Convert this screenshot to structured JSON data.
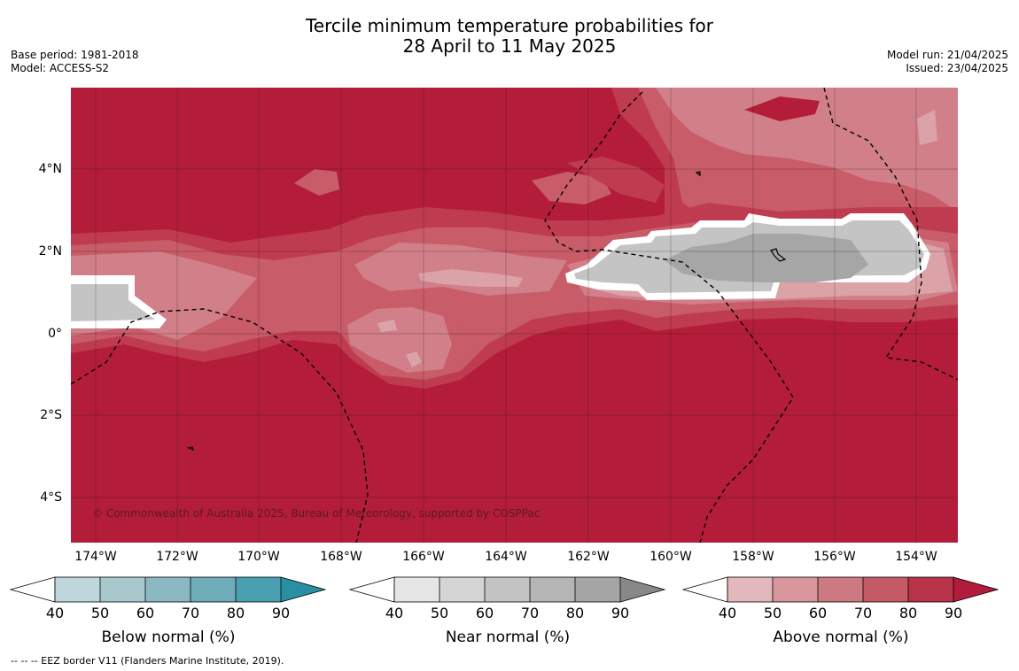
{
  "title": {
    "line1": "Tercile minimum temperature probabilities for",
    "line2": "28 April to 11 May 2025"
  },
  "meta": {
    "base_period": "Base period: 1981-2018",
    "model": "Model: ACCESS-S2",
    "model_run": "Model run: 21/04/2025",
    "issued": "Issued: 23/04/2025"
  },
  "map": {
    "copyright": "© Commonwealth of Australia 2025, Bureau of Meteorology, supported by COSPPac",
    "lat_labels": [
      "4°N",
      "2°N",
      "0°",
      "2°S",
      "4°S"
    ],
    "lon_labels": [
      "174°W",
      "172°W",
      "170°W",
      "168°W",
      "166°W",
      "164°W",
      "162°W",
      "160°W",
      "158°W",
      "156°W",
      "154°W"
    ],
    "colors": {
      "above_90": "#b31d3a",
      "above_80": "#bf3b50",
      "above_70": "#c85c69",
      "above_60": "#d17f88",
      "above_50": "#dba2a8",
      "near_70": "#c4c4c4",
      "near_80": "#a6a6a6"
    }
  },
  "legends": [
    {
      "title": "Below normal (%)",
      "ticks": [
        "40",
        "50",
        "60",
        "70",
        "80",
        "90"
      ],
      "colors": [
        "#bfd6dc",
        "#a8c8cd",
        "#8bb8c3",
        "#6eacb9",
        "#4aa0b0",
        "#2a8fa3"
      ]
    },
    {
      "title": "Near normal (%)",
      "ticks": [
        "40",
        "50",
        "60",
        "70",
        "80",
        "90"
      ],
      "colors": [
        "#e6e6e6",
        "#d5d5d5",
        "#c4c4c4",
        "#b5b5b5",
        "#a5a5a5",
        "#888888"
      ]
    },
    {
      "title": "Above normal (%)",
      "ticks": [
        "40",
        "50",
        "60",
        "70",
        "80",
        "90"
      ],
      "colors": [
        "#e3b8bd",
        "#d8959c",
        "#cc7981",
        "#c45a66",
        "#b8334a",
        "#b01c3a"
      ]
    }
  ],
  "footnote": "--  --  -- EEZ border V11 (Flanders Marine Institute, 2019)."
}
